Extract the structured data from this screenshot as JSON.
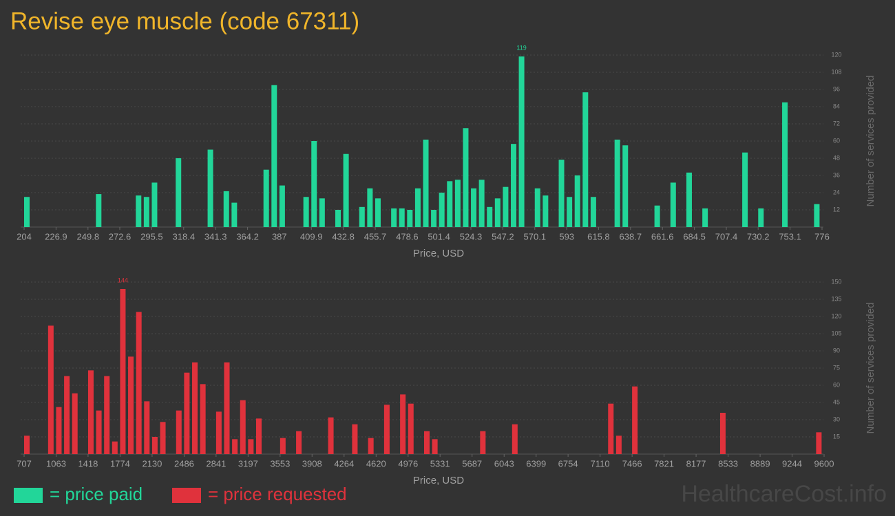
{
  "title": "Revise eye muscle (code 67311)",
  "watermark": "HealthcareCost.info",
  "chart_data": [
    {
      "type": "bar",
      "xlabel": "Price, USD",
      "ylabel": "Number of services provided",
      "grid": true,
      "label_max": true,
      "xlim": [
        204,
        776
      ],
      "ylim": [
        0,
        120
      ],
      "xticks": [
        204,
        226.9,
        249.8,
        272.6,
        295.5,
        318.4,
        341.3,
        364.2,
        387,
        409.9,
        432.8,
        455.7,
        478.6,
        501.4,
        524.3,
        547.2,
        570.1,
        593,
        615.8,
        638.7,
        661.6,
        684.5,
        707.4,
        730.2,
        753.1,
        776
      ],
      "yticks": [
        12,
        24,
        36,
        48,
        60,
        72,
        84,
        96,
        108,
        120
      ],
      "x": [
        204,
        255.48,
        284.08,
        289.8,
        295.52,
        312.68,
        335.56,
        347,
        352.72,
        375.6,
        381.32,
        387.04,
        404.2,
        409.92,
        415.64,
        427.08,
        432.8,
        444.24,
        449.96,
        455.68,
        467.12,
        472.84,
        478.56,
        484.28,
        490,
        495.72,
        501.44,
        507.16,
        512.88,
        518.6,
        524.32,
        530.04,
        535.76,
        541.48,
        547.2,
        552.92,
        558.64,
        570.08,
        575.8,
        587.24,
        592.96,
        598.68,
        604.4,
        610.12,
        627.28,
        633,
        655.88,
        667.32,
        678.76,
        690.2,
        718.8,
        730.24,
        747.4,
        770.28
      ],
      "series": [
        {
          "name": "= price paid",
          "color": "#22d699",
          "values": [
            21,
            23,
            22,
            21,
            31,
            48,
            54,
            25,
            17,
            40,
            99,
            29,
            21,
            60,
            20,
            12,
            51,
            14,
            27,
            20,
            13,
            13,
            12,
            27,
            61,
            12,
            24,
            32,
            33,
            69,
            27,
            33,
            14,
            20,
            28,
            58,
            119,
            27,
            22,
            47,
            21,
            36,
            94,
            21,
            61,
            57,
            15,
            31,
            38,
            13,
            52,
            13,
            87,
            16
          ]
        }
      ]
    },
    {
      "type": "bar",
      "xlabel": "Price, USD",
      "ylabel": "Number of services provided",
      "grid": true,
      "label_max": true,
      "xlim": [
        707,
        9600
      ],
      "ylim": [
        0,
        150
      ],
      "xticks": [
        707,
        1063,
        1418,
        1774,
        2130,
        2486,
        2841,
        3197,
        3553,
        3908,
        4264,
        4620,
        4976,
        5331,
        5687,
        6043,
        6399,
        6754,
        7110,
        7466,
        7821,
        8177,
        8533,
        8889,
        9244,
        9600
      ],
      "yticks": [
        15,
        30,
        45,
        60,
        75,
        90,
        105,
        120,
        135,
        150
      ],
      "x": [
        707,
        973.79,
        1062.72,
        1151.65,
        1240.58,
        1418.44,
        1507.37,
        1596.3,
        1685.23,
        1774.16,
        1863.09,
        1952.02,
        2040.95,
        2129.88,
        2218.81,
        2396.67,
        2485.6,
        2574.53,
        2663.46,
        2841.32,
        2930.25,
        3019.18,
        3108.11,
        3197.04,
        3285.97,
        3552.76,
        3730.62,
        4086.34,
        4353.13,
        4530.99,
        4708.85,
        4886.71,
        4975.64,
        5153.5,
        5242.43,
        5776.01,
        6131.73,
        7198.89,
        7287.82,
        7465.68,
        8443.91,
        9511.07
      ],
      "series": [
        {
          "name": "= price requested",
          "color": "#e0323c",
          "values": [
            16,
            112,
            41,
            68,
            53,
            73,
            38,
            68,
            11,
            144,
            85,
            124,
            46,
            15,
            28,
            38,
            71,
            80,
            61,
            37,
            80,
            13,
            47,
            13,
            31,
            14,
            20,
            32,
            26,
            14,
            43,
            52,
            44,
            20,
            13,
            20,
            26,
            44,
            16,
            59,
            36,
            19
          ]
        }
      ]
    }
  ]
}
